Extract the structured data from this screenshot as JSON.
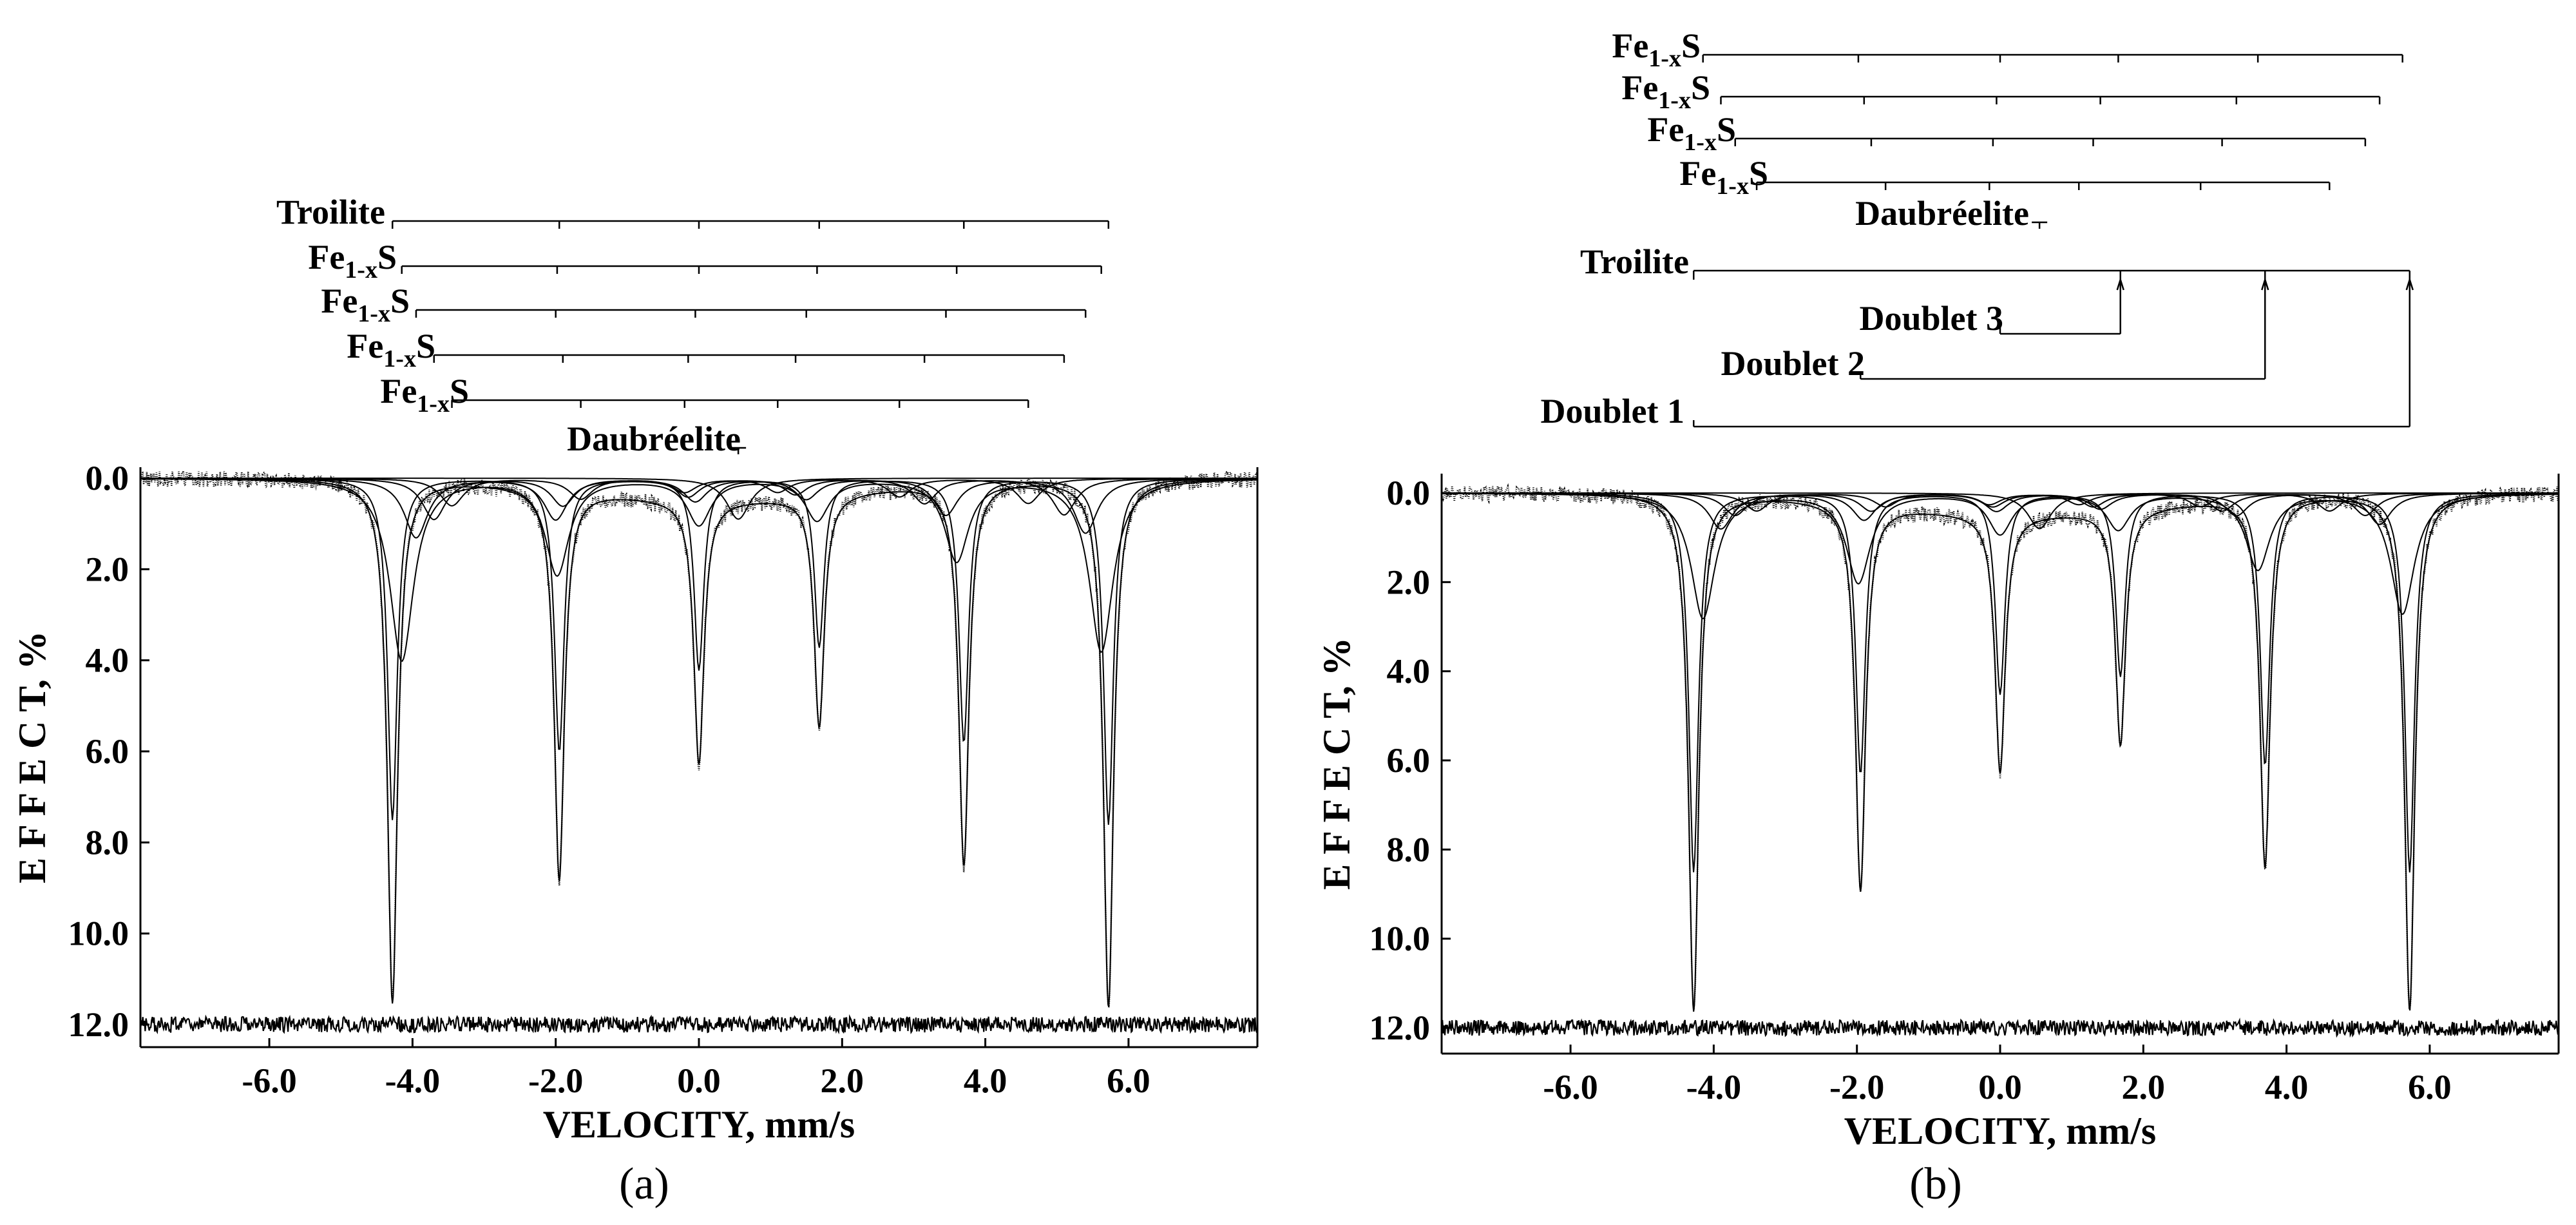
{
  "chart_data": [
    {
      "type": "line",
      "panel_label": "(a)",
      "xlabel": "VELOCITY, mm/s",
      "ylabel": "E F F E C T, %",
      "xlim": [
        -7.8,
        7.8
      ],
      "ylim": [
        0.0,
        12.6
      ],
      "x_ticks": [
        "-6.0",
        "-4.0",
        "-2.0",
        "0.0",
        "2.0",
        "4.0",
        "6.0"
      ],
      "y_ticks": [
        "0.0",
        "2.0",
        "4.0",
        "6.0",
        "8.0",
        "10.0",
        "12.0"
      ],
      "residual_baseline": 12.0,
      "peaks": [
        {
          "x": -4.28,
          "depth": 11.5
        },
        {
          "x": -1.95,
          "depth": 8.6
        },
        {
          "x": 0.0,
          "depth": 5.8
        },
        {
          "x": 1.68,
          "depth": 5.1
        },
        {
          "x": 3.7,
          "depth": 8.4
        },
        {
          "x": 5.72,
          "depth": 11.6
        }
      ],
      "components": [
        {
          "name": "Troilite",
          "lines": [
            -4.28,
            -1.95,
            0.0,
            1.68,
            3.7,
            5.72
          ],
          "depths": [
            7.5,
            6.0,
            4.2,
            3.7,
            5.8,
            7.6
          ]
        },
        {
          "name": "Fe1-xS",
          "lines": [
            -4.15,
            -1.98,
            0.0,
            1.65,
            3.6,
            5.62
          ],
          "depths": [
            4.0,
            2.1,
            1.0,
            0.9,
            1.8,
            3.8
          ]
        },
        {
          "name": "Fe1-xS",
          "lines": [
            -3.95,
            -2.0,
            -0.05,
            1.5,
            3.45,
            5.4
          ],
          "depths": [
            1.3,
            0.9,
            0.5,
            0.45,
            0.8,
            1.2
          ]
        },
        {
          "name": "Fe1-xS",
          "lines": [
            -3.7,
            -1.9,
            -0.15,
            1.35,
            3.15,
            5.1
          ],
          "depths": [
            0.9,
            0.6,
            0.4,
            0.35,
            0.55,
            0.8
          ]
        },
        {
          "name": "Fe1-xS",
          "lines": [
            -3.45,
            -1.65,
            -0.2,
            1.1,
            2.8,
            4.6
          ],
          "depths": [
            0.6,
            0.45,
            0.3,
            0.3,
            0.4,
            0.55
          ]
        },
        {
          "name": "Daubréelite",
          "lines": [
            0.55
          ],
          "depths": [
            0.9
          ]
        }
      ],
      "markers": [
        {
          "label_main": "Troilite",
          "label_sub": "",
          "label_tail": "",
          "lines": [
            -4.28,
            -1.95,
            0.0,
            1.68,
            3.7,
            5.72
          ]
        },
        {
          "label_main": "Fe",
          "label_sub": "1-x",
          "label_tail": "S",
          "lines": [
            -4.15,
            -1.98,
            0.0,
            1.65,
            3.6,
            5.62
          ]
        },
        {
          "label_main": "Fe",
          "label_sub": "1-x",
          "label_tail": "S",
          "lines": [
            -3.95,
            -2.0,
            -0.05,
            1.5,
            3.45,
            5.4
          ]
        },
        {
          "label_main": "Fe",
          "label_sub": "1-x",
          "label_tail": "S",
          "lines": [
            -3.7,
            -1.9,
            -0.15,
            1.35,
            3.15,
            5.1
          ]
        },
        {
          "label_main": "Fe",
          "label_sub": "1-x",
          "label_tail": "S",
          "lines": [
            -3.45,
            -1.65,
            -0.2,
            1.1,
            2.8,
            4.6
          ]
        },
        {
          "label_main": "Daubréelite",
          "label_sub": "",
          "label_tail": "",
          "lines": [
            0.55
          ]
        }
      ],
      "doublets": []
    },
    {
      "type": "line",
      "panel_label": "(b)",
      "xlabel": "VELOCITY, mm/s",
      "ylabel": "E F F E C T, %",
      "xlim": [
        -7.8,
        7.8
      ],
      "ylim": [
        0.0,
        12.6
      ],
      "x_ticks": [
        "-6.0",
        "-4.0",
        "-2.0",
        "0.0",
        "2.0",
        "4.0",
        "6.0"
      ],
      "y_ticks": [
        "0.0",
        "2.0",
        "4.0",
        "6.0",
        "8.0",
        "10.0",
        "12.0"
      ],
      "residual_baseline": 12.0,
      "peaks": [
        {
          "x": -4.28,
          "depth": 11.6
        },
        {
          "x": -1.95,
          "depth": 8.7
        },
        {
          "x": 0.0,
          "depth": 5.8
        },
        {
          "x": 1.68,
          "depth": 5.3
        },
        {
          "x": 3.7,
          "depth": 8.3
        },
        {
          "x": 5.72,
          "depth": 11.6
        }
      ],
      "components": [
        {
          "name": "Troilite",
          "lines": [
            -4.28,
            -1.95,
            0.0,
            1.68,
            3.7,
            5.72
          ],
          "depths": [
            8.5,
            6.3,
            4.5,
            4.1,
            6.1,
            8.5
          ]
        },
        {
          "name": "Fe1-xS",
          "lines": [
            -4.15,
            -1.98,
            0.0,
            1.65,
            3.6,
            5.62
          ],
          "depths": [
            2.8,
            2.0,
            0.9,
            0.8,
            1.7,
            2.7
          ]
        },
        {
          "name": "Fe1-xS",
          "lines": [
            -3.9,
            -1.9,
            -0.05,
            1.4,
            3.3,
            5.3
          ],
          "depths": [
            0.8,
            0.6,
            0.4,
            0.35,
            0.5,
            0.7
          ]
        },
        {
          "name": "Fe1-xS",
          "lines": [
            -3.7,
            -1.8,
            -0.1,
            1.3,
            3.1,
            5.1
          ],
          "depths": [
            0.5,
            0.4,
            0.3,
            0.3,
            0.4,
            0.5
          ]
        },
        {
          "name": "Fe1-xS",
          "lines": [
            -3.4,
            -1.6,
            -0.15,
            1.1,
            2.8,
            4.6
          ],
          "depths": [
            0.4,
            0.3,
            0.25,
            0.25,
            0.3,
            0.4
          ]
        },
        {
          "name": "Daubréelite",
          "lines": [
            0.55
          ],
          "depths": [
            0.8
          ]
        }
      ],
      "markers": [
        {
          "label_main": "Fe",
          "label_sub": "1-x",
          "label_tail": "S",
          "lines": [
            -4.15,
            -1.98,
            0.0,
            1.65,
            3.6,
            5.62
          ]
        },
        {
          "label_main": "Fe",
          "label_sub": "1-x",
          "label_tail": "S",
          "lines": [
            -3.9,
            -1.9,
            -0.05,
            1.4,
            3.3,
            5.3
          ]
        },
        {
          "label_main": "Fe",
          "label_sub": "1-x",
          "label_tail": "S",
          "lines": [
            -3.7,
            -1.8,
            -0.1,
            1.3,
            3.1,
            5.1
          ]
        },
        {
          "label_main": "Fe",
          "label_sub": "1-x",
          "label_tail": "S",
          "lines": [
            -3.4,
            -1.6,
            -0.15,
            1.1,
            2.8,
            4.6
          ]
        },
        {
          "label_main": "Daubréelite",
          "label_sub": "",
          "label_tail": "",
          "lines": [
            0.55
          ]
        },
        {
          "label_main": "Troilite",
          "label_sub": "",
          "label_tail": "",
          "lines": [
            -4.28,
            1.68,
            3.7,
            5.72
          ]
        }
      ],
      "doublets": [
        {
          "label": "Doublet 3",
          "lines": [
            0.0,
            1.68
          ]
        },
        {
          "label": "Doublet 2",
          "lines": [
            -1.95,
            3.7
          ]
        },
        {
          "label": "Doublet 1",
          "lines": [
            -4.28,
            5.72
          ]
        }
      ]
    }
  ]
}
